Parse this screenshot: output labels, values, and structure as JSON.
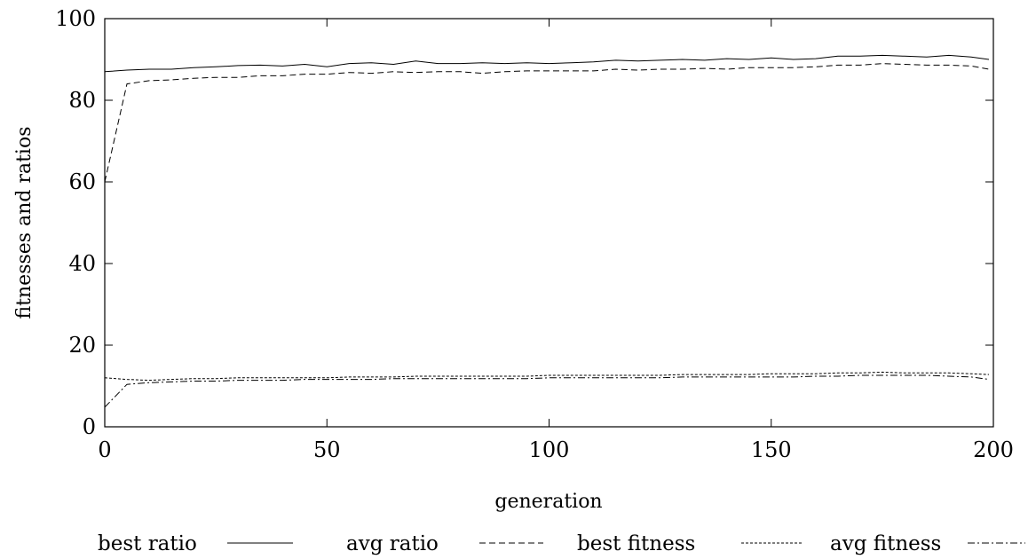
{
  "chart_data": {
    "type": "line",
    "title": "",
    "xlabel": "generation",
    "ylabel": "fitnesses and ratios",
    "xlim": [
      0,
      200
    ],
    "ylim": [
      0,
      100
    ],
    "xticks": [
      0,
      50,
      100,
      150,
      200
    ],
    "yticks": [
      0,
      20,
      40,
      60,
      80,
      100
    ],
    "grid": false,
    "legend_position": "bottom",
    "x": [
      0,
      5,
      10,
      15,
      20,
      25,
      30,
      35,
      40,
      45,
      50,
      55,
      60,
      65,
      70,
      75,
      80,
      85,
      90,
      95,
      100,
      105,
      110,
      115,
      120,
      125,
      130,
      135,
      140,
      145,
      150,
      155,
      160,
      165,
      170,
      175,
      180,
      185,
      190,
      195,
      199
    ],
    "series": [
      {
        "name": "best ratio",
        "dash": "solid",
        "values": [
          87.0,
          87.4,
          87.6,
          87.6,
          88.0,
          88.2,
          88.5,
          88.6,
          88.4,
          88.8,
          88.2,
          89.0,
          89.2,
          88.8,
          89.6,
          89.0,
          89.0,
          89.2,
          89.0,
          89.2,
          89.0,
          89.2,
          89.4,
          89.8,
          89.6,
          89.8,
          90.0,
          89.8,
          90.2,
          90.0,
          90.4,
          90.0,
          90.2,
          90.8,
          90.8,
          91.0,
          90.8,
          90.6,
          91.0,
          90.6,
          90.0
        ]
      },
      {
        "name": "avg ratio",
        "dash": "dashed",
        "values": [
          60.0,
          84.0,
          84.8,
          85.0,
          85.4,
          85.6,
          85.6,
          86.0,
          86.0,
          86.4,
          86.4,
          86.8,
          86.6,
          87.0,
          86.8,
          87.0,
          87.0,
          86.6,
          87.0,
          87.2,
          87.2,
          87.2,
          87.2,
          87.6,
          87.4,
          87.6,
          87.6,
          87.8,
          87.6,
          88.0,
          88.0,
          88.0,
          88.2,
          88.6,
          88.6,
          89.0,
          88.8,
          88.6,
          88.6,
          88.4,
          87.6
        ]
      },
      {
        "name": "best fitness",
        "dash": "dotted",
        "values": [
          12.0,
          11.6,
          11.4,
          11.6,
          11.8,
          11.8,
          12.0,
          12.0,
          12.0,
          12.0,
          12.0,
          12.2,
          12.2,
          12.2,
          12.4,
          12.4,
          12.4,
          12.4,
          12.4,
          12.4,
          12.6,
          12.6,
          12.6,
          12.6,
          12.6,
          12.6,
          12.8,
          12.8,
          12.8,
          12.8,
          13.0,
          13.0,
          13.0,
          13.2,
          13.2,
          13.4,
          13.2,
          13.2,
          13.2,
          13.0,
          12.8
        ]
      },
      {
        "name": "avg fitness",
        "dash": "dashdot",
        "values": [
          4.8,
          10.4,
          10.8,
          11.0,
          11.2,
          11.2,
          11.4,
          11.4,
          11.4,
          11.6,
          11.6,
          11.6,
          11.6,
          11.8,
          11.8,
          11.8,
          11.8,
          11.8,
          11.8,
          11.8,
          12.0,
          12.0,
          12.0,
          12.0,
          12.0,
          12.0,
          12.2,
          12.2,
          12.2,
          12.2,
          12.2,
          12.2,
          12.4,
          12.4,
          12.6,
          12.6,
          12.6,
          12.6,
          12.4,
          12.2,
          11.6
        ]
      }
    ]
  }
}
